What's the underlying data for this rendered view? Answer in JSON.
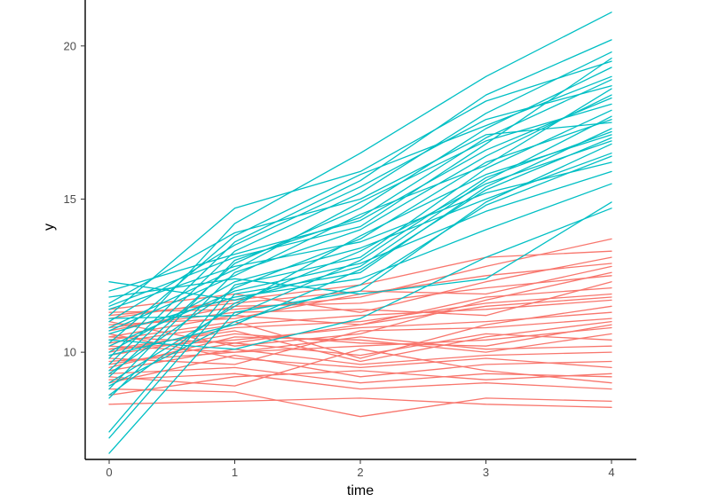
{
  "chart_data": {
    "type": "line",
    "title": "",
    "xlabel": "time",
    "ylabel": "y",
    "x": [
      0,
      1,
      2,
      3,
      4
    ],
    "xlim": [
      0,
      4
    ],
    "ylim": [
      6.5,
      21.5
    ],
    "xticks": [
      "0",
      "1",
      "2",
      "3",
      "4"
    ],
    "yticks": [
      "10",
      "15",
      "20"
    ],
    "grid": false,
    "legend": "none",
    "colors": {
      "group_a": "#f8766d",
      "group_b": "#00bfc4"
    },
    "groups": [
      {
        "name": "group_a",
        "color": "#f8766d",
        "series": [
          [
            8.3,
            8.4,
            8.5,
            8.3,
            8.2
          ],
          [
            8.8,
            8.7,
            7.9,
            8.5,
            8.4
          ],
          [
            9.1,
            9.3,
            8.8,
            9.0,
            8.8
          ],
          [
            9.4,
            10.1,
            9.6,
            9.9,
            10.0
          ],
          [
            9.6,
            10.3,
            9.9,
            10.6,
            10.4
          ],
          [
            9.9,
            10.6,
            10.3,
            10.2,
            10.9
          ],
          [
            10.1,
            10.4,
            10.8,
            11.0,
            11.3
          ],
          [
            10.3,
            10.9,
            11.2,
            11.4,
            11.7
          ],
          [
            10.5,
            11.2,
            10.9,
            11.8,
            12.1
          ],
          [
            10.7,
            11.5,
            11.6,
            12.1,
            12.5
          ],
          [
            10.9,
            11.1,
            11.9,
            12.5,
            12.9
          ],
          [
            11.1,
            11.7,
            12.2,
            13.1,
            13.3
          ],
          [
            11.3,
            11.4,
            11.8,
            12.8,
            13.7
          ],
          [
            8.6,
            9.2,
            9.4,
            9.1,
            9.3
          ],
          [
            9.0,
            9.9,
            9.2,
            9.6,
            9.7
          ],
          [
            9.2,
            8.9,
            10.1,
            9.4,
            9.0
          ],
          [
            9.5,
            10.5,
            10.4,
            10.0,
            10.6
          ],
          [
            9.8,
            9.6,
            10.7,
            10.8,
            11.1
          ],
          [
            10.0,
            10.8,
            11.0,
            11.6,
            11.9
          ],
          [
            10.2,
            10.0,
            10.2,
            10.4,
            10.8
          ],
          [
            10.4,
            11.0,
            9.8,
            10.9,
            11.5
          ],
          [
            10.6,
            9.8,
            9.5,
            9.8,
            9.5
          ],
          [
            10.8,
            11.3,
            11.4,
            11.2,
            12.3
          ],
          [
            11.0,
            10.2,
            10.6,
            11.7,
            12.6
          ],
          [
            11.2,
            11.6,
            12.0,
            11.9,
            12.8
          ],
          [
            11.4,
            11.9,
            11.3,
            12.3,
            13.1
          ],
          [
            9.3,
            9.5,
            9.0,
            9.3,
            9.2
          ],
          [
            9.7,
            10.0,
            10.5,
            10.1,
            10.2
          ],
          [
            10.1,
            10.7,
            9.7,
            10.5,
            11.0
          ],
          [
            10.5,
            10.3,
            10.9,
            11.5,
            11.8
          ]
        ]
      },
      {
        "name": "group_b",
        "color": "#00bfc4",
        "series": [
          [
            6.7,
            11.3,
            12.0,
            14.9,
            16.8
          ],
          [
            7.2,
            11.9,
            12.6,
            15.4,
            17.3
          ],
          [
            7.4,
            12.2,
            13.1,
            16.0,
            17.9
          ],
          [
            8.5,
            12.6,
            14.0,
            16.4,
            18.4
          ],
          [
            8.8,
            13.0,
            14.4,
            17.0,
            18.9
          ],
          [
            9.0,
            11.5,
            13.8,
            15.8,
            17.1
          ],
          [
            9.2,
            12.9,
            14.7,
            17.3,
            19.3
          ],
          [
            9.4,
            13.3,
            15.2,
            17.8,
            19.8
          ],
          [
            9.6,
            13.6,
            15.6,
            18.4,
            20.2
          ],
          [
            9.8,
            14.2,
            16.5,
            19.0,
            21.1
          ],
          [
            10.0,
            12.3,
            13.4,
            15.0,
            16.5
          ],
          [
            10.2,
            12.0,
            12.9,
            14.6,
            15.9
          ],
          [
            10.4,
            10.1,
            11.1,
            13.1,
            14.7
          ],
          [
            10.6,
            11.8,
            12.4,
            14.0,
            15.5
          ],
          [
            10.8,
            12.7,
            14.9,
            16.9,
            18.1
          ],
          [
            11.0,
            13.5,
            15.4,
            17.6,
            18.7
          ],
          [
            11.2,
            14.7,
            15.9,
            18.2,
            19.5
          ],
          [
            11.4,
            12.8,
            13.6,
            15.2,
            16.2
          ],
          [
            11.6,
            13.9,
            15.0,
            17.1,
            17.5
          ],
          [
            11.8,
            12.4,
            11.9,
            12.4,
            14.9
          ],
          [
            12.0,
            13.2,
            14.3,
            16.6,
            18.3
          ],
          [
            12.3,
            11.7,
            12.8,
            15.6,
            17.7
          ],
          [
            8.9,
            11.0,
            12.2,
            14.8,
            16.4
          ],
          [
            9.3,
            12.1,
            13.7,
            16.2,
            17.6
          ],
          [
            9.9,
            10.9,
            12.7,
            15.3,
            17.0
          ],
          [
            10.3,
            13.8,
            15.8,
            17.4,
            19.0
          ],
          [
            10.7,
            12.5,
            14.5,
            16.1,
            18.6
          ],
          [
            11.1,
            11.2,
            13.0,
            15.7,
            17.2
          ],
          [
            11.5,
            13.1,
            14.1,
            16.8,
            19.6
          ],
          [
            8.6,
            11.6,
            13.3,
            15.5,
            16.9
          ]
        ]
      }
    ]
  }
}
